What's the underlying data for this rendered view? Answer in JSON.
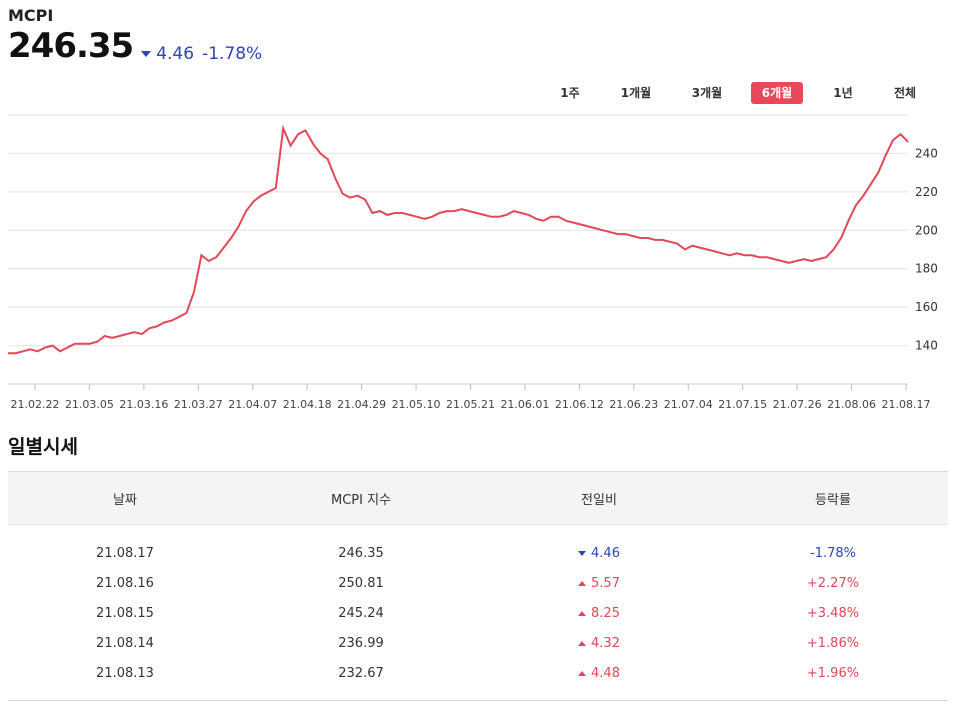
{
  "header": {
    "title": "MCPI",
    "price": "246.35",
    "change": "4.46",
    "change_pct": "-1.78%"
  },
  "periods": [
    "1주",
    "1개월",
    "3개월",
    "6개월",
    "1년",
    "전체"
  ],
  "active_period": "6개월",
  "colors": {
    "up": "#e24858",
    "down": "#2c44b8",
    "line": "#e24858",
    "active_tab": "#e8495a"
  },
  "chart_data": {
    "type": "line",
    "x_ticks": [
      "21.02.22",
      "21.03.05",
      "21.03.16",
      "21.03.27",
      "21.04.07",
      "21.04.18",
      "21.04.29",
      "21.05.10",
      "21.05.21",
      "21.06.01",
      "21.06.12",
      "21.06.23",
      "21.07.04",
      "21.07.15",
      "21.07.26",
      "21.08.06",
      "21.08.17"
    ],
    "y_ticks": [
      140,
      160,
      180,
      200,
      220,
      240
    ],
    "ylim": [
      120,
      260
    ],
    "grid": true,
    "series": [
      {
        "values": [
          136,
          136,
          137,
          138,
          137,
          139,
          140,
          137,
          139,
          141,
          141,
          141,
          142,
          145,
          144,
          145,
          146,
          147,
          146,
          149,
          150,
          152,
          153,
          155,
          157,
          168,
          187,
          184,
          186,
          191,
          196,
          202,
          210,
          215,
          218,
          220,
          222,
          253,
          244,
          250,
          252,
          245,
          240,
          237,
          227,
          219,
          217,
          218,
          216,
          209,
          210,
          208,
          209,
          209,
          208,
          207,
          206,
          207,
          209,
          210,
          210,
          211,
          210,
          209,
          208,
          207,
          207,
          208,
          210,
          209,
          208,
          206,
          205,
          207,
          207,
          205,
          204,
          203,
          202,
          201,
          200,
          199,
          198,
          198,
          197,
          196,
          196,
          195,
          195,
          194,
          193,
          190,
          192,
          191,
          190,
          189,
          188,
          187,
          188,
          187,
          187,
          186,
          186,
          185,
          184,
          183,
          184,
          185,
          184,
          185,
          186,
          190,
          196,
          205,
          213,
          218,
          224,
          230,
          239,
          247,
          250,
          246
        ]
      }
    ]
  },
  "daily": {
    "title": "일별시세",
    "headers": [
      "날짜",
      "MCPI 지수",
      "전일비",
      "등락률"
    ],
    "rows": [
      {
        "date": "21.08.17",
        "value": "246.35",
        "dir": "down",
        "diff": "4.46",
        "pct": "-1.78%"
      },
      {
        "date": "21.08.16",
        "value": "250.81",
        "dir": "up",
        "diff": "5.57",
        "pct": "+2.27%"
      },
      {
        "date": "21.08.15",
        "value": "245.24",
        "dir": "up",
        "diff": "8.25",
        "pct": "+3.48%"
      },
      {
        "date": "21.08.14",
        "value": "236.99",
        "dir": "up",
        "diff": "4.32",
        "pct": "+1.86%"
      },
      {
        "date": "21.08.13",
        "value": "232.67",
        "dir": "up",
        "diff": "4.48",
        "pct": "+1.96%"
      }
    ]
  }
}
